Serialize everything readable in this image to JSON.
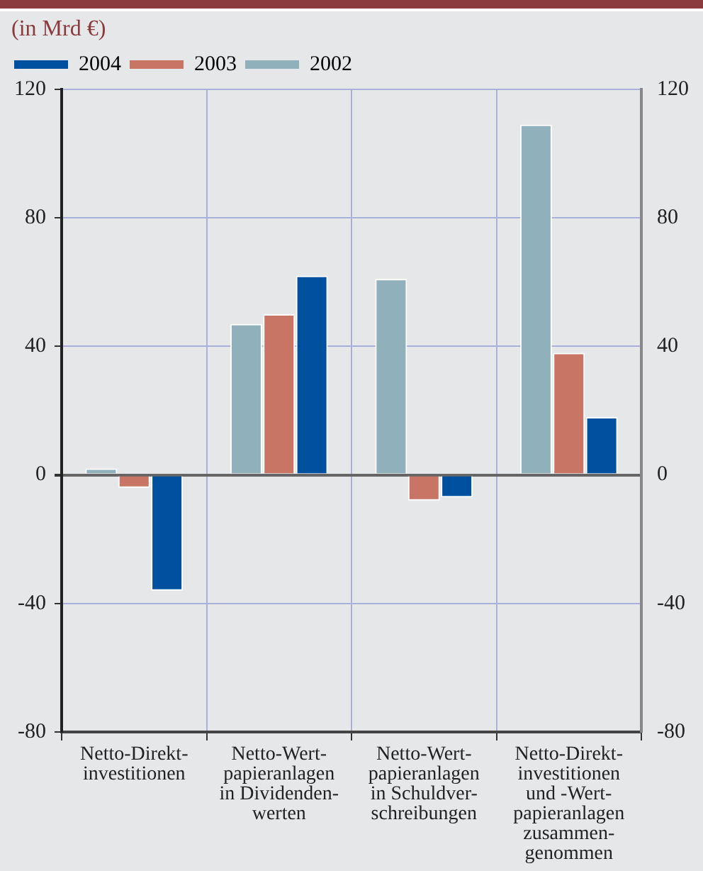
{
  "chart_data": {
    "type": "bar",
    "title": "(in Mrd €)",
    "categories": [
      "Netto-Direkt-\ninvestitionen",
      "Netto-Wert-\npapieranlagen\nin Dividenden-\nwerten",
      "Netto-Wert-\npapieranlagen\nin Schuldver-\nschreibungen",
      "Netto-Direkt-\ninvestitionen\nund -Wert-\npapieranlagen\nzusammen-\ngenommen"
    ],
    "series": [
      {
        "name": "2002",
        "color": "#90b0bc",
        "values": [
          2,
          47,
          61,
          109
        ]
      },
      {
        "name": "2003",
        "color": "#c87566",
        "values": [
          -4,
          50,
          -8,
          38
        ]
      },
      {
        "name": "2004",
        "color": "#0050a0",
        "values": [
          -36,
          62,
          -7,
          18
        ]
      }
    ],
    "ylim": [
      -80,
      120
    ],
    "yticks": [
      -80,
      -40,
      0,
      40,
      80,
      120
    ],
    "y2lim": [
      -80,
      120
    ],
    "y2ticks": [
      -80,
      -40,
      0,
      40,
      80,
      120
    ],
    "grid": true,
    "legend": "top left"
  }
}
